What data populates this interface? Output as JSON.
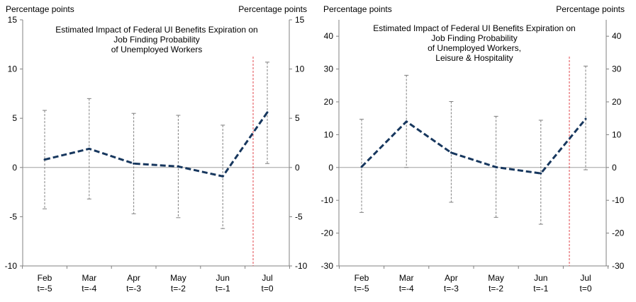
{
  "chart_data": [
    {
      "type": "line",
      "title": [
        "Estimated Impact of Federal UI Benefits Expiration on",
        "Job Finding Probability",
        "of Unemployed Workers"
      ],
      "ylabel_left": "Percentage points",
      "ylabel_right": "Percentage points",
      "ylim": [
        -10,
        15
      ],
      "yticks": [
        -10,
        -5,
        0,
        5,
        10,
        15
      ],
      "categories": [
        [
          "Feb",
          "t=-5"
        ],
        [
          "Mar",
          "t=-4"
        ],
        [
          "Apr",
          "t=-3"
        ],
        [
          "May",
          "t=-2"
        ],
        [
          "Jun",
          "t=-1"
        ],
        [
          "Jul",
          "t=0"
        ]
      ],
      "values": [
        0.8,
        1.9,
        0.4,
        0.1,
        -0.9,
        5.6
      ],
      "ci_upper": [
        5.8,
        7.0,
        5.5,
        5.3,
        4.3,
        10.7
      ],
      "ci_lower": [
        -4.2,
        -3.2,
        -4.7,
        -5.1,
        -6.2,
        0.4
      ],
      "event_line_after_index": 4,
      "colors": {
        "line": "#17375e",
        "ci": "#808080",
        "event": "#e0474c",
        "zero": "#a0a0a0"
      }
    },
    {
      "type": "line",
      "title": [
        "Estimated Impact of Federal UI Benefits Expiration on",
        "Job Finding Probability",
        "of Unemployed Workers,",
        "Leisure & Hospitality"
      ],
      "ylabel_left": "Percentage points",
      "ylabel_right": "Percentage points",
      "ylim": [
        -30,
        45
      ],
      "yticks": [
        -30,
        -20,
        -10,
        0,
        10,
        20,
        30,
        40
      ],
      "categories": [
        [
          "Feb",
          "t=-5"
        ],
        [
          "Mar",
          "t=-4"
        ],
        [
          "Apr",
          "t=-3"
        ],
        [
          "May",
          "t=-2"
        ],
        [
          "Jun",
          "t=-1"
        ],
        [
          "Jul",
          "t=0"
        ]
      ],
      "values": [
        0.2,
        14.0,
        4.5,
        0.1,
        -1.8,
        14.8
      ],
      "ci_upper": [
        14.7,
        28.1,
        20.1,
        15.6,
        14.4,
        30.9
      ],
      "ci_lower": [
        -13.7,
        0.0,
        -10.6,
        -15.2,
        -17.3,
        -0.7
      ],
      "event_line_after_index": 4,
      "colors": {
        "line": "#17375e",
        "ci": "#808080",
        "event": "#e0474c",
        "zero": "#a0a0a0"
      }
    }
  ]
}
